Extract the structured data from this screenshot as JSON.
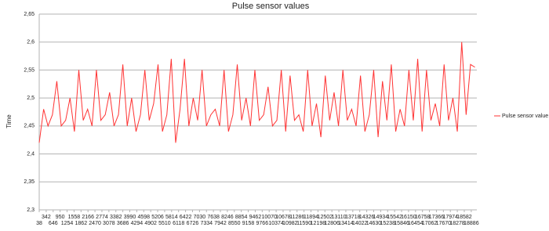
{
  "chart_data": {
    "type": "line",
    "title": "Pulse sensor values",
    "y_label": "Time",
    "x": [
      38,
      230,
      422,
      614,
      806,
      998,
      1190,
      1382,
      1574,
      1766,
      1958,
      2150,
      2342,
      2534,
      2726,
      2918,
      3110,
      3302,
      3494,
      3686,
      3878,
      4070,
      4262,
      4454,
      4646,
      4838,
      5030,
      5222,
      5414,
      5606,
      5798,
      5990,
      6182,
      6374,
      6566,
      6758,
      6950,
      7142,
      7334,
      7526,
      7718,
      7910,
      8102,
      8294,
      8486,
      8678,
      8870,
      9062,
      9254,
      9446,
      9638,
      9830,
      10022,
      10214,
      10406,
      10598,
      10790,
      10982,
      11174,
      11366,
      11558,
      11750,
      11942,
      12134,
      12326,
      12518,
      12710,
      12902,
      13094,
      13286,
      13478,
      13670,
      13862,
      14054,
      14246,
      14438,
      14630,
      14822,
      15014,
      15206,
      15398,
      15590,
      15782,
      15974,
      16166,
      16358,
      16550,
      16742,
      16934,
      17126,
      17318,
      17510,
      17702,
      17894,
      18086,
      18278,
      18470,
      18662,
      18854,
      19046
    ],
    "series": [
      {
        "name": "Pulse sensor value",
        "color": "#ff3333",
        "values": [
          2.42,
          2.48,
          2.45,
          2.47,
          2.53,
          2.45,
          2.46,
          2.5,
          2.44,
          2.55,
          2.46,
          2.48,
          2.45,
          2.55,
          2.46,
          2.47,
          2.51,
          2.45,
          2.47,
          2.56,
          2.45,
          2.5,
          2.44,
          2.47,
          2.55,
          2.46,
          2.49,
          2.56,
          2.44,
          2.47,
          2.57,
          2.42,
          2.48,
          2.57,
          2.45,
          2.5,
          2.46,
          2.55,
          2.45,
          2.47,
          2.48,
          2.45,
          2.55,
          2.44,
          2.47,
          2.56,
          2.46,
          2.5,
          2.45,
          2.55,
          2.46,
          2.47,
          2.52,
          2.45,
          2.46,
          2.55,
          2.44,
          2.54,
          2.46,
          2.47,
          2.44,
          2.55,
          2.45,
          2.49,
          2.43,
          2.54,
          2.46,
          2.51,
          2.45,
          2.55,
          2.46,
          2.48,
          2.45,
          2.54,
          2.44,
          2.47,
          2.55,
          2.43,
          2.53,
          2.46,
          2.56,
          2.44,
          2.48,
          2.45,
          2.55,
          2.46,
          2.57,
          2.44,
          2.55,
          2.46,
          2.49,
          2.45,
          2.56,
          2.46,
          2.5,
          2.44,
          2.6,
          2.47,
          2.56,
          2.555
        ]
      }
    ],
    "xlim": [
      38,
      19130
    ],
    "xticks": [
      38,
      342,
      646,
      950,
      1254,
      1558,
      1862,
      2166,
      2470,
      2774,
      3078,
      3382,
      3686,
      3990,
      4294,
      4598,
      4902,
      5206,
      5510,
      5814,
      6118,
      6422,
      6726,
      7030,
      7334,
      7638,
      7942,
      8246,
      8550,
      8854,
      9158,
      9462,
      9766,
      10070,
      10374,
      10678,
      10982,
      11286,
      11590,
      11894,
      12198,
      12502,
      12806,
      13110,
      13414,
      13718,
      14022,
      14326,
      14630,
      14934,
      15238,
      15542,
      15846,
      16150,
      16454,
      16758,
      17062,
      17366,
      17670,
      17974,
      18278,
      18582,
      18886
    ],
    "ylim": [
      2.3,
      2.65
    ],
    "yticks": [
      {
        "value": 2.3,
        "label": "2,3"
      },
      {
        "value": 2.35,
        "label": "2,35"
      },
      {
        "value": 2.4,
        "label": "2,4"
      },
      {
        "value": 2.45,
        "label": "2,45"
      },
      {
        "value": 2.5,
        "label": "2,5"
      },
      {
        "value": 2.55,
        "label": "2,55"
      },
      {
        "value": 2.6,
        "label": "2,6"
      },
      {
        "value": 2.65,
        "label": "2,65"
      }
    ],
    "grid": true,
    "legend": "right"
  }
}
